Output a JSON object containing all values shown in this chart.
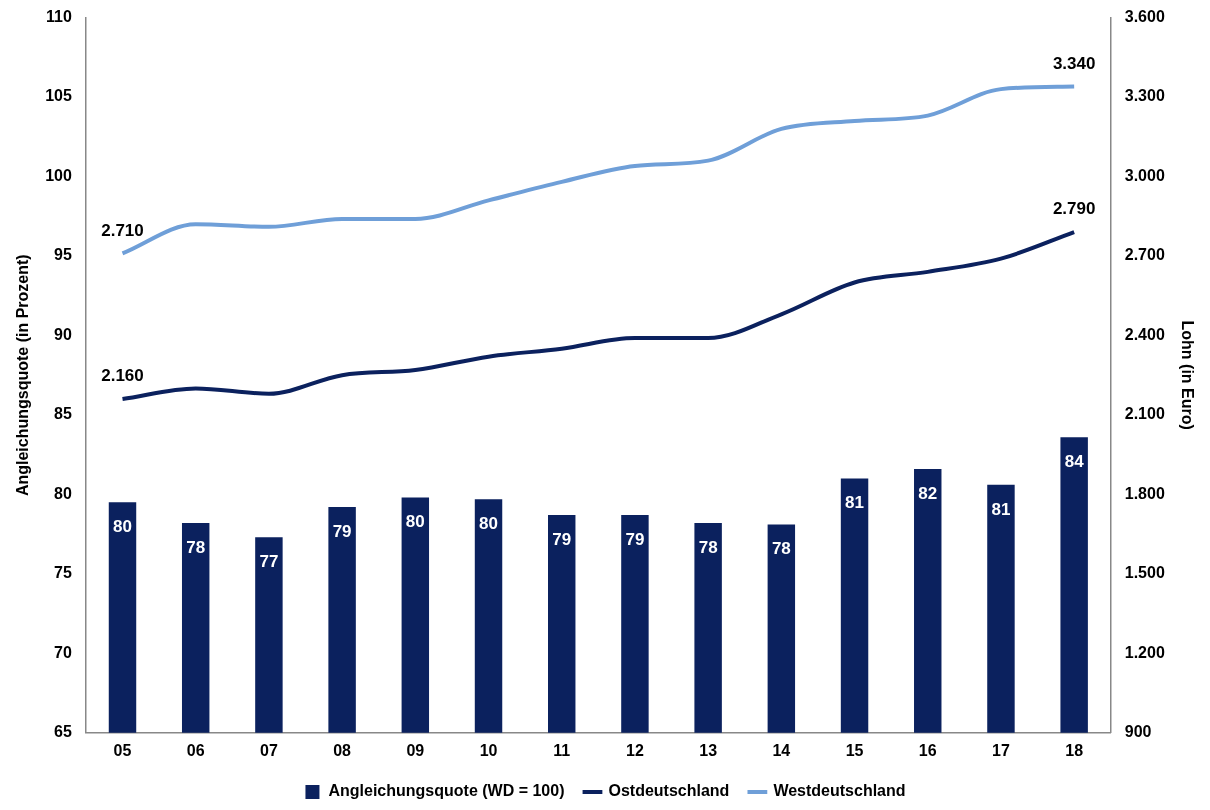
{
  "chart_data": {
    "type": "bar",
    "categories": [
      "05",
      "06",
      "07",
      "08",
      "09",
      "10",
      "11",
      "12",
      "13",
      "14",
      "15",
      "16",
      "17",
      "18"
    ],
    "ylabel": "Angleichungsquote (in Prozent)",
    "y2label": "Lohn (in Euro)",
    "ylim": [
      65,
      110
    ],
    "yticks": [
      65,
      70,
      75,
      80,
      85,
      90,
      95,
      100,
      105,
      110
    ],
    "y2lim": [
      900,
      3600
    ],
    "y2ticks": [
      {
        "value": 900,
        "label": "900"
      },
      {
        "value": 1200,
        "label": "1.200"
      },
      {
        "value": 1500,
        "label": "1.500"
      },
      {
        "value": 1800,
        "label": "1.800"
      },
      {
        "value": 2100,
        "label": "2.100"
      },
      {
        "value": 2400,
        "label": "2.400"
      },
      {
        "value": 2700,
        "label": "2.700"
      },
      {
        "value": 3000,
        "label": "3.000"
      },
      {
        "value": 3300,
        "label": "3.300"
      },
      {
        "value": 3600,
        "label": "3.600"
      }
    ],
    "legend": "bottom",
    "series": [
      {
        "name": "Angleichungsquote (WD = 100)",
        "color": "#0b215e",
        "values": [
          79.5,
          78.2,
          77.3,
          79.2,
          79.8,
          79.7,
          78.7,
          78.7,
          78.2,
          78.1,
          81.0,
          81.6,
          80.6,
          83.6
        ],
        "value_labels": [
          "80",
          "78",
          "77",
          "79",
          "80",
          "80",
          "79",
          "79",
          "78",
          "78",
          "81",
          "82",
          "81",
          "84"
        ]
      },
      {
        "name": "Ostdeutschland",
        "type": "line",
        "axis": "y2",
        "color": "#0b215e",
        "values": [
          2160,
          2200,
          2180,
          2250,
          2270,
          2320,
          2350,
          2390,
          2390,
          2480,
          2600,
          2640,
          2690,
          2790
        ],
        "value_labels": [
          "2.160",
          null,
          null,
          null,
          null,
          null,
          null,
          null,
          null,
          null,
          null,
          null,
          null,
          "2.790"
        ]
      },
      {
        "name": "Westdeutschland",
        "type": "line",
        "axis": "y2",
        "color": "#6f9fd8",
        "values": [
          2710,
          2820,
          2810,
          2840,
          2840,
          2910,
          2980,
          3040,
          3060,
          3180,
          3210,
          3230,
          3330,
          3340
        ],
        "value_labels": [
          "2.710",
          null,
          null,
          null,
          null,
          null,
          null,
          null,
          null,
          null,
          null,
          null,
          null,
          "3.340"
        ]
      }
    ]
  }
}
